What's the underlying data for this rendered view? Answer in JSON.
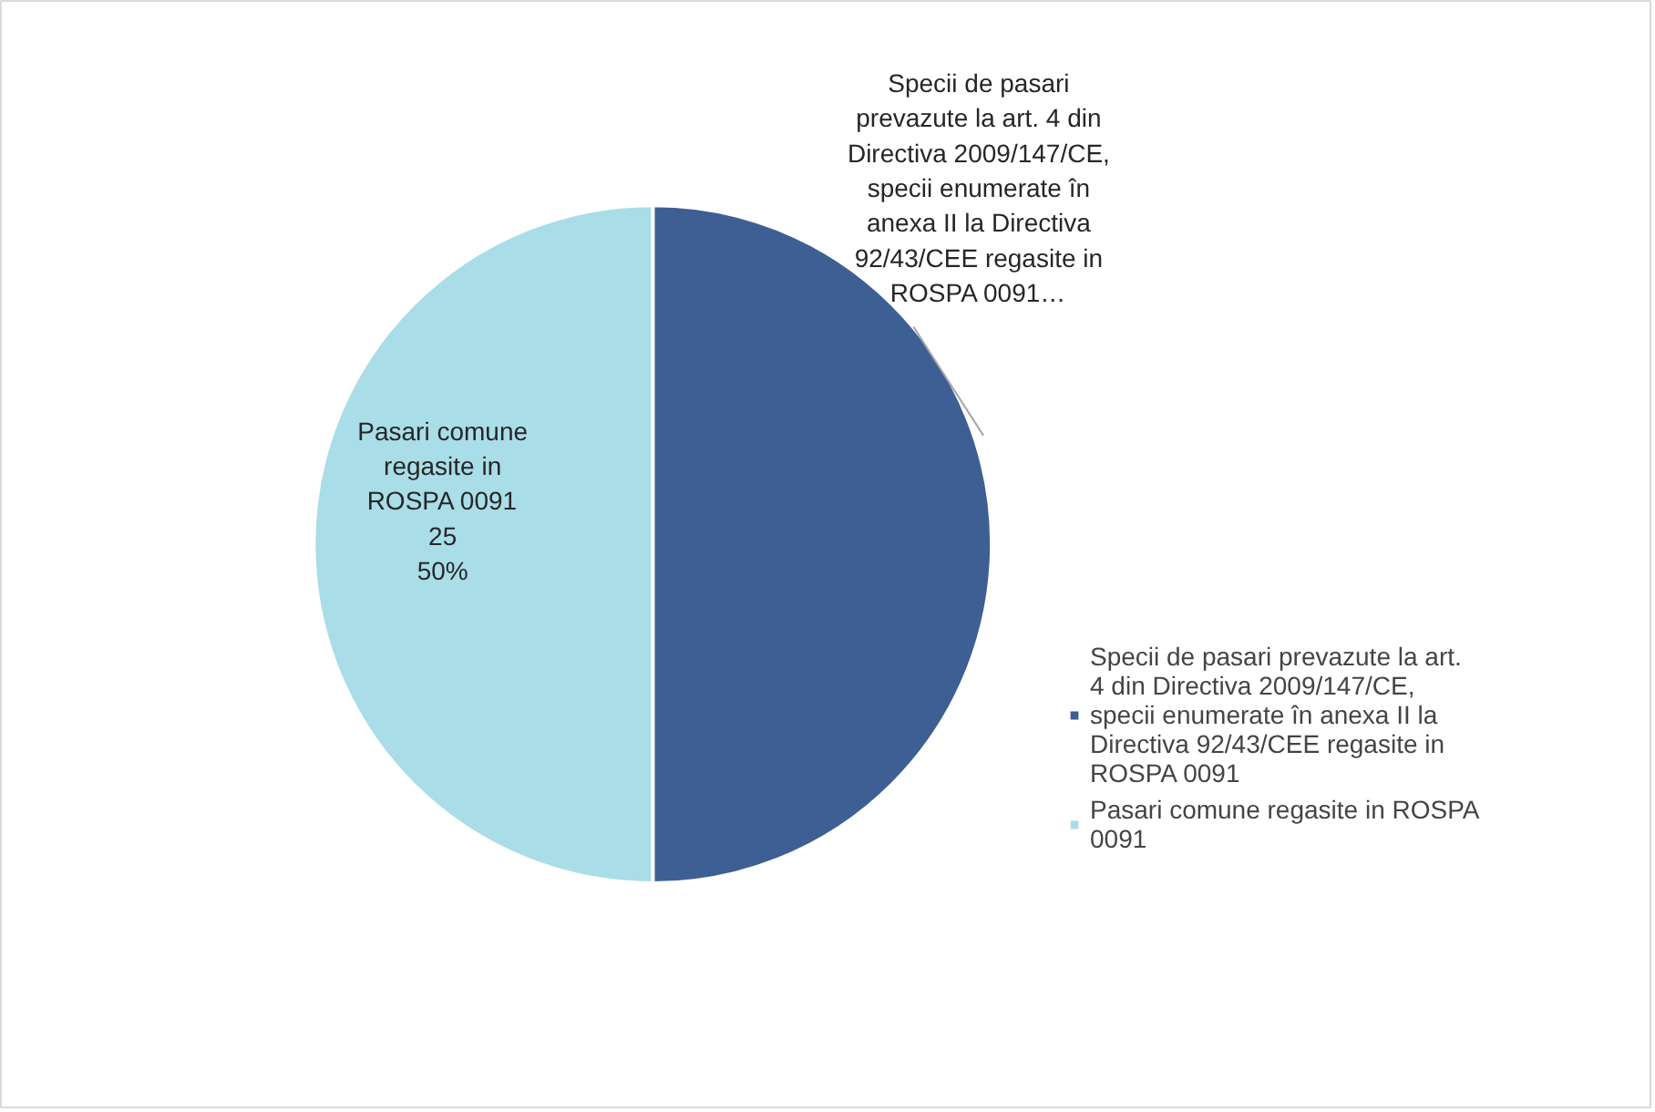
{
  "chart_data": {
    "type": "pie",
    "categories": [
      "Specii de pasari prevazute la art. 4 din Directiva 2009/147/CE, specii enumerate în anexa II la Directiva 92/43/CEE regasite in ROSPA 0091",
      "Pasari comune regasite in ROSPA 0091"
    ],
    "values": [
      25,
      25
    ],
    "colors": [
      "#3e5f93",
      "#a9dde8"
    ],
    "value_labels": [
      "Specii de pasari prevazute la art. 4 din Directiva 2009/147/CE, specii enumerate în anexa II la Directiva 92/43/CEE regasite in ROSPA 0091…",
      "Pasari comune regasite in ROSPA 0091\n25\n50%"
    ],
    "legend": "right"
  }
}
